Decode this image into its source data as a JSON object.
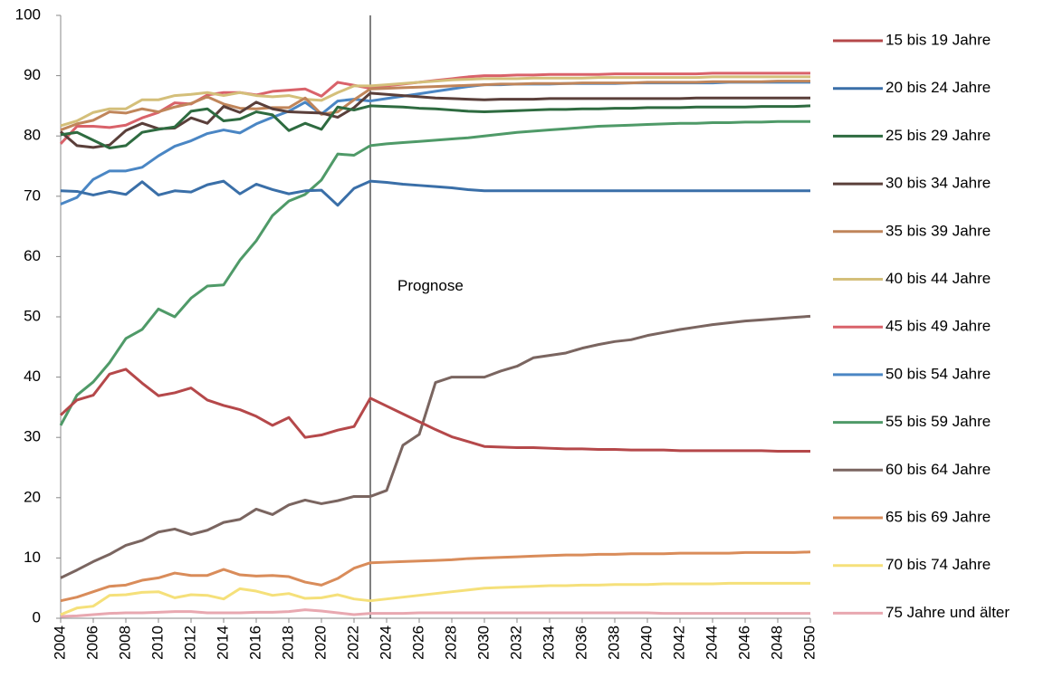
{
  "chart_data": {
    "type": "line",
    "x": [
      2004,
      2005,
      2006,
      2007,
      2008,
      2009,
      2010,
      2011,
      2012,
      2013,
      2014,
      2015,
      2016,
      2017,
      2018,
      2019,
      2020,
      2021,
      2022,
      2023,
      2024,
      2025,
      2026,
      2027,
      2028,
      2029,
      2030,
      2031,
      2032,
      2033,
      2034,
      2035,
      2036,
      2037,
      2038,
      2039,
      2040,
      2041,
      2042,
      2043,
      2044,
      2045,
      2046,
      2047,
      2048,
      2049,
      2050
    ],
    "xlim": [
      2004,
      2050
    ],
    "xticks": [
      2004,
      2006,
      2008,
      2010,
      2012,
      2014,
      2016,
      2018,
      2020,
      2022,
      2024,
      2026,
      2028,
      2030,
      2032,
      2034,
      2036,
      2038,
      2040,
      2042,
      2044,
      2046,
      2048,
      2050
    ],
    "ylim": [
      0,
      100
    ],
    "yticks": [
      0,
      10,
      20,
      30,
      40,
      50,
      60,
      70,
      80,
      90,
      100
    ],
    "grid": false,
    "legend": "right",
    "annotations": [
      {
        "text": "Prognose",
        "x": 2023
      }
    ],
    "series": [
      {
        "name": "15 bis 19 Jahre",
        "color": "#b5484a",
        "values": [
          33.7,
          36.2,
          37,
          40.5,
          41.3,
          39,
          36.9,
          37.4,
          38.2,
          36.2,
          35.3,
          34.6,
          33.5,
          32,
          33.3,
          30,
          30.4,
          31.2,
          31.8,
          36.5,
          35.2,
          33.9,
          32.6,
          31.3,
          30.1,
          29.3,
          28.5,
          28.4,
          28.3,
          28.3,
          28.2,
          28.1,
          28.1,
          28,
          28,
          27.9,
          27.9,
          27.9,
          27.8,
          27.8,
          27.8,
          27.8,
          27.8,
          27.8,
          27.7,
          27.7,
          27.7
        ]
      },
      {
        "name": "20 bis 24 Jahre",
        "color": "#3a6fa8",
        "values": [
          70.9,
          70.8,
          70.2,
          70.8,
          70.3,
          72.4,
          70.2,
          70.9,
          70.7,
          71.9,
          72.5,
          70.4,
          72,
          71.1,
          70.4,
          70.9,
          71,
          68.5,
          71.3,
          72.5,
          72.3,
          72,
          71.8,
          71.6,
          71.4,
          71.1,
          70.9,
          70.9,
          70.9,
          70.9,
          70.9,
          70.9,
          70.9,
          70.9,
          70.9,
          70.9,
          70.9,
          70.9,
          70.9,
          70.9,
          70.9,
          70.9,
          70.9,
          70.9,
          70.9,
          70.9,
          70.9
        ]
      },
      {
        "name": "25 bis 29 Jahre",
        "color": "#2e6b40",
        "values": [
          80.2,
          80.6,
          79.3,
          78,
          78.4,
          80.6,
          81.1,
          81.5,
          84.1,
          84.5,
          82.5,
          82.8,
          84,
          83.5,
          80.9,
          82.1,
          81.1,
          84.8,
          84.3,
          85,
          84.9,
          84.8,
          84.6,
          84.5,
          84.3,
          84.1,
          84,
          84.1,
          84.2,
          84.3,
          84.4,
          84.4,
          84.5,
          84.5,
          84.6,
          84.6,
          84.7,
          84.7,
          84.7,
          84.8,
          84.8,
          84.8,
          84.8,
          84.9,
          84.9,
          84.9,
          85
        ]
      },
      {
        "name": "30 bis 34 Jahre",
        "color": "#5a3f3a",
        "values": [
          80.7,
          78.4,
          78.1,
          78.5,
          80.9,
          82.1,
          81.2,
          81.3,
          83,
          82.1,
          84.9,
          83.9,
          85.6,
          84.5,
          84,
          83.9,
          83.8,
          83.1,
          84.7,
          87.1,
          86.9,
          86.7,
          86.5,
          86.3,
          86.2,
          86.1,
          86,
          86.1,
          86.1,
          86.1,
          86.2,
          86.2,
          86.2,
          86.2,
          86.2,
          86.2,
          86.2,
          86.2,
          86.2,
          86.3,
          86.3,
          86.3,
          86.3,
          86.3,
          86.3,
          86.3,
          86.3
        ]
      },
      {
        "name": "35 bis 39 Jahre",
        "color": "#c0855a",
        "values": [
          81,
          82,
          82.6,
          84,
          83.8,
          84.5,
          84,
          84.8,
          85.4,
          86.5,
          85.3,
          84.6,
          84.5,
          84.7,
          84.7,
          86.3,
          83.6,
          84,
          86,
          87.8,
          87.9,
          88,
          88.1,
          88.2,
          88.3,
          88.4,
          88.5,
          88.6,
          88.6,
          88.7,
          88.7,
          88.7,
          88.8,
          88.8,
          88.8,
          88.8,
          88.9,
          88.9,
          88.9,
          88.9,
          89,
          89,
          89,
          89,
          89.1,
          89.1,
          89.1
        ]
      },
      {
        "name": "40 bis 44 Jahre",
        "color": "#d4bf7a",
        "values": [
          81.7,
          82.5,
          83.9,
          84.5,
          84.5,
          86,
          86,
          86.7,
          86.9,
          87.2,
          86.7,
          87.2,
          86.7,
          86.5,
          86.7,
          86.1,
          85.9,
          87.2,
          88.3,
          88.3,
          88.5,
          88.7,
          88.9,
          89.1,
          89.3,
          89.4,
          89.5,
          89.5,
          89.5,
          89.6,
          89.6,
          89.6,
          89.6,
          89.7,
          89.7,
          89.7,
          89.7,
          89.7,
          89.7,
          89.7,
          89.8,
          89.8,
          89.8,
          89.8,
          89.8,
          89.8,
          89.8
        ]
      },
      {
        "name": "45 bis 49 Jahre",
        "color": "#d9626a",
        "values": [
          78.7,
          81.6,
          81.6,
          81.4,
          81.8,
          83,
          83.9,
          85.5,
          85.3,
          86.8,
          87.2,
          87.2,
          86.8,
          87.4,
          87.6,
          87.8,
          86.6,
          88.9,
          88.4,
          87.9,
          88.3,
          88.6,
          88.9,
          89.2,
          89.5,
          89.8,
          90,
          90,
          90.1,
          90.1,
          90.2,
          90.2,
          90.2,
          90.2,
          90.3,
          90.3,
          90.3,
          90.3,
          90.3,
          90.3,
          90.4,
          90.4,
          90.4,
          90.4,
          90.4,
          90.4,
          90.4
        ]
      },
      {
        "name": "50 bis 54 Jahre",
        "color": "#4a86c4",
        "values": [
          68.7,
          69.8,
          72.8,
          74.2,
          74.2,
          74.8,
          76.7,
          78.3,
          79.2,
          80.4,
          81,
          80.5,
          82,
          83.1,
          84.1,
          85.6,
          83.6,
          85.8,
          86.1,
          85.8,
          86.2,
          86.6,
          87,
          87.4,
          87.8,
          88.2,
          88.5,
          88.5,
          88.6,
          88.6,
          88.6,
          88.7,
          88.7,
          88.7,
          88.7,
          88.8,
          88.8,
          88.8,
          88.8,
          88.8,
          88.8,
          88.9,
          88.9,
          88.9,
          88.9,
          88.9,
          88.9
        ]
      },
      {
        "name": "55 bis 59 Jahre",
        "color": "#4f9a68",
        "values": [
          32,
          37,
          39.2,
          42.4,
          46.4,
          47.9,
          51.3,
          50,
          53.1,
          55.1,
          55.3,
          59.4,
          62.6,
          66.8,
          69.2,
          70.3,
          72.7,
          77,
          76.8,
          78.4,
          78.7,
          78.9,
          79.1,
          79.3,
          79.5,
          79.7,
          80,
          80.3,
          80.6,
          80.8,
          81,
          81.2,
          81.4,
          81.6,
          81.7,
          81.8,
          81.9,
          82,
          82.1,
          82.1,
          82.2,
          82.2,
          82.3,
          82.3,
          82.4,
          82.4,
          82.4
        ]
      },
      {
        "name": "60 bis 64 Jahre",
        "color": "#7a6560",
        "values": [
          6.7,
          8,
          9.4,
          10.6,
          12.1,
          12.9,
          14.3,
          14.8,
          13.9,
          14.6,
          15.9,
          16.4,
          18.1,
          17.2,
          18.8,
          19.6,
          19,
          19.5,
          20.2,
          20.2,
          21.2,
          28.7,
          30.5,
          39.1,
          40,
          40,
          40,
          41,
          41.8,
          43.2,
          43.6,
          44,
          44.8,
          45.4,
          45.9,
          46.2,
          46.9,
          47.4,
          47.9,
          48.3,
          48.7,
          49,
          49.3,
          49.5,
          49.7,
          49.9,
          50.1
        ]
      },
      {
        "name": "65 bis 69 Jahre",
        "color": "#d98c5a",
        "values": [
          2.9,
          3.5,
          4.4,
          5.3,
          5.5,
          6.3,
          6.7,
          7.5,
          7.1,
          7.1,
          8.1,
          7.2,
          7,
          7.1,
          6.9,
          6,
          5.5,
          6.6,
          8.3,
          9.2,
          9.3,
          9.4,
          9.5,
          9.6,
          9.7,
          9.9,
          10,
          10.1,
          10.2,
          10.3,
          10.4,
          10.5,
          10.5,
          10.6,
          10.6,
          10.7,
          10.7,
          10.7,
          10.8,
          10.8,
          10.8,
          10.8,
          10.9,
          10.9,
          10.9,
          10.9,
          11
        ]
      },
      {
        "name": "70 bis 74 Jahre",
        "color": "#f5e07a",
        "values": [
          0.6,
          1.7,
          2,
          3.8,
          3.9,
          4.3,
          4.4,
          3.4,
          3.9,
          3.8,
          3.2,
          4.9,
          4.5,
          3.8,
          4.1,
          3.3,
          3.4,
          3.9,
          3.2,
          2.9,
          3.2,
          3.5,
          3.8,
          4.1,
          4.4,
          4.7,
          5,
          5.1,
          5.2,
          5.3,
          5.4,
          5.4,
          5.5,
          5.5,
          5.6,
          5.6,
          5.6,
          5.7,
          5.7,
          5.7,
          5.7,
          5.8,
          5.8,
          5.8,
          5.8,
          5.8,
          5.8
        ]
      },
      {
        "name": "75 Jahre und älter",
        "color": "#e8a8b0",
        "values": [
          0.3,
          0.4,
          0.6,
          0.8,
          0.9,
          0.9,
          1,
          1.1,
          1.1,
          0.9,
          0.9,
          0.9,
          1,
          1,
          1.1,
          1.4,
          1.2,
          0.9,
          0.6,
          0.8,
          0.8,
          0.8,
          0.9,
          0.9,
          0.9,
          0.9,
          0.9,
          0.9,
          0.9,
          0.9,
          0.9,
          0.9,
          0.9,
          0.9,
          0.9,
          0.9,
          0.9,
          0.8,
          0.8,
          0.8,
          0.8,
          0.8,
          0.8,
          0.8,
          0.8,
          0.8,
          0.8
        ]
      }
    ]
  }
}
